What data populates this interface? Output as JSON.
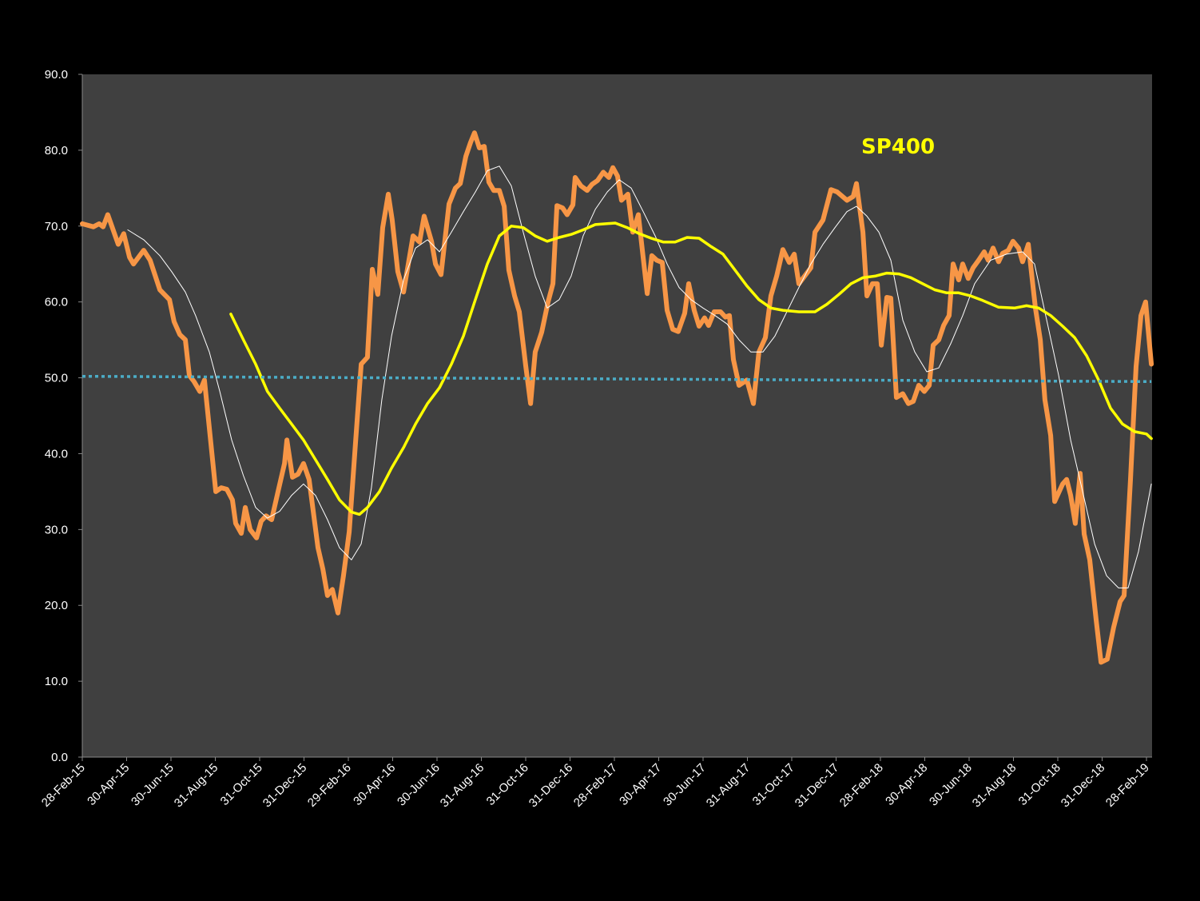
{
  "chart_data": {
    "type": "line",
    "title": "SP400",
    "title_color": "#FFFF00",
    "xlabel": "",
    "ylabel": "",
    "x_units": "months since 28-Feb-15",
    "xlim": [
      0,
      48.22
    ],
    "ylim": [
      0,
      90
    ],
    "y_ticks": [
      "0.0",
      "10.0",
      "20.0",
      "30.0",
      "40.0",
      "50.0",
      "60.0",
      "70.0",
      "80.0",
      "90.0"
    ],
    "x_tick_labels": [
      "28-Feb-15",
      "30-Apr-15",
      "30-Jun-15",
      "31-Aug-15",
      "31-Oct-15",
      "31-Dec-15",
      "29-Feb-16",
      "30-Apr-16",
      "30-Jun-16",
      "31-Aug-16",
      "31-Oct-16",
      "31-Dec-16",
      "28-Feb-17",
      "30-Apr-17",
      "30-Jun-17",
      "31-Aug-17",
      "31-Oct-17",
      "31-Dec-17",
      "28-Feb-18",
      "30-Apr-18",
      "30-Jun-18",
      "31-Aug-18",
      "31-Oct-18",
      "31-Dec-18",
      "28-Feb-19"
    ],
    "x_tick_step_months": 2,
    "grid": false,
    "plot_background": "#404040",
    "series": [
      {
        "color": "#F79646",
        "width": "thick",
        "style": "solid",
        "x": [
          0,
          0.5,
          0.76,
          0.94,
          1.15,
          1.62,
          1.87,
          2.13,
          2.31,
          2.77,
          3.06,
          3.5,
          3.93,
          4.14,
          4.4,
          4.65,
          4.83,
          5.04,
          5.3,
          5.51,
          6.02,
          6.27,
          6.52,
          6.77,
          6.92,
          7.17,
          7.35,
          7.57,
          7.86,
          8.07,
          8.29,
          8.54,
          8.83,
          9.12,
          9.23,
          9.48,
          9.73,
          9.98,
          10.23,
          10.63,
          10.85,
          11.06,
          11.28,
          11.53,
          11.78,
          12.04,
          12.32,
          12.58,
          12.86,
          13.08,
          13.33,
          13.55,
          13.8,
          13.98,
          14.23,
          14.49,
          14.92,
          15.21,
          15.42,
          15.75,
          15.93,
          16.18,
          16.54,
          16.83,
          17.05,
          17.3,
          17.51,
          17.69,
          17.91,
          18.13,
          18.34,
          18.56,
          18.81,
          19.03,
          19.24,
          19.5,
          19.71,
          20,
          20.22,
          20.43,
          20.72,
          21.01,
          21.23,
          21.41,
          21.66,
          21.87,
          22.13,
          22.23,
          22.49,
          22.77,
          22.99,
          23.24,
          23.5,
          23.75,
          23.93,
          24.14,
          24.32,
          24.61,
          24.83,
          25.08,
          25.48,
          25.69,
          25.91,
          26.16,
          26.38,
          26.63,
          26.88,
          27.17,
          27.35,
          27.6,
          27.82,
          28.07,
          28.25,
          28.5,
          28.79,
          29.01,
          29.19,
          29.37,
          29.62,
          29.98,
          30.27,
          30.52,
          30.81,
          31.06,
          31.32,
          31.6,
          31.89,
          32.11,
          32.32,
          32.86,
          33.05,
          33.41,
          33.77,
          34.05,
          34.49,
          34.77,
          34.92,
          35.21,
          35.39,
          35.64,
          35.86,
          36.04,
          36.29,
          36.47,
          36.72,
          37.01,
          37.26,
          37.48,
          37.73,
          37.98,
          38.2,
          38.38,
          38.63,
          38.85,
          39.1,
          39.28,
          39.53,
          39.71,
          39.96,
          40.18,
          40.43,
          40.68,
          40.86,
          41.08,
          41.33,
          41.51,
          41.77,
          41.98,
          42.23,
          42.41,
          42.67,
          42.99,
          43.21,
          43.42,
          43.68,
          43.86,
          44.22,
          44.4,
          44.58,
          44.79,
          45.01,
          45.19,
          45.44,
          45.73,
          45.95,
          46.23,
          46.52,
          46.81,
          46.99,
          47.28,
          47.53,
          47.75,
          47.96,
          48.22
        ],
        "y": [
          70.3,
          69.9,
          70.3,
          69.9,
          71.5,
          67.6,
          69,
          65.9,
          65,
          66.8,
          65.5,
          61.6,
          60.3,
          57.4,
          55.7,
          55,
          50.3,
          49.5,
          48.2,
          49.7,
          35,
          35.5,
          35.3,
          33.9,
          30.8,
          29.5,
          32.9,
          30,
          28.9,
          31.1,
          31.8,
          31.3,
          35,
          38.7,
          41.8,
          36.9,
          37.3,
          38.7,
          36.6,
          27.6,
          24.8,
          21.3,
          22.1,
          19,
          23.9,
          29.7,
          41.3,
          51.8,
          52.7,
          64.3,
          61,
          69.8,
          74.2,
          70.8,
          64,
          61.3,
          68.7,
          67.9,
          71.3,
          68,
          65,
          63.6,
          72.9,
          75,
          75.6,
          79.2,
          81,
          82.3,
          80.3,
          80.5,
          75.8,
          74.7,
          74.7,
          72.6,
          64.2,
          60.8,
          58.7,
          51.6,
          46.6,
          53.4,
          56,
          60,
          62.4,
          72.7,
          72.4,
          71.5,
          72.8,
          76.4,
          75.3,
          74.7,
          75.5,
          76,
          77.1,
          76.4,
          77.7,
          76.6,
          73.4,
          74.2,
          69.2,
          71.5,
          61.1,
          66.1,
          65.5,
          65.2,
          58.9,
          56.4,
          56.1,
          58.5,
          62.4,
          58.9,
          56.8,
          57.9,
          56.9,
          58.7,
          58.7,
          58,
          58.2,
          52.4,
          49,
          49.7,
          46.6,
          53.4,
          55.3,
          60.8,
          63.4,
          66.9,
          65.2,
          66.3,
          62.4,
          64.5,
          69.2,
          70.8,
          74.8,
          74.5,
          73.4,
          73.9,
          75.6,
          69.2,
          60.8,
          62.4,
          62.4,
          54.3,
          60.6,
          60.5,
          47.4,
          47.9,
          46.6,
          46.9,
          49,
          48.2,
          49,
          54.3,
          55,
          56.9,
          58.2,
          65,
          62.9,
          65,
          63.1,
          64.5,
          65.5,
          66.6,
          65.5,
          67.1,
          65.3,
          66.4,
          66.8,
          68,
          67.1,
          65.3,
          67.6,
          59.2,
          55,
          47.1,
          42.4,
          33.7,
          36,
          36.6,
          34.5,
          30.8,
          37.4,
          29.4,
          26,
          18.1,
          12.5,
          12.9,
          17.1,
          20.5,
          21.3,
          36.6,
          51.5,
          58.2,
          60,
          51.8
        ]
      },
      {
        "color": "#FFFFFF",
        "width": "thin",
        "style": "solid",
        "x": [
          2.05,
          2.77,
          3.5,
          4.03,
          4.65,
          5.11,
          5.73,
          6.2,
          6.74,
          7.27,
          7.82,
          8.35,
          8.9,
          9.44,
          9.98,
          10.52,
          11.06,
          11.6,
          12.14,
          12.58,
          13.04,
          13.51,
          13.95,
          14.49,
          15.03,
          15.57,
          16.11,
          16.65,
          17.19,
          17.73,
          18.27,
          18.81,
          19.35,
          19.89,
          20.43,
          20.97,
          21.51,
          22.05,
          22.59,
          23.14,
          23.68,
          24.22,
          24.76,
          25.3,
          25.84,
          26.38,
          26.92,
          27.46,
          28,
          28.54,
          29.08,
          29.62,
          30.16,
          30.7,
          31.24,
          31.78,
          32.32,
          32.86,
          33.41,
          33.95,
          34.49,
          34.92,
          35.39,
          35.93,
          36.47,
          37.01,
          37.55,
          38.09,
          38.63,
          39.17,
          39.71,
          40.25,
          40.97,
          41.69,
          42.41,
          42.95,
          43.5,
          44.04,
          44.58,
          45.12,
          45.66,
          46.2,
          46.74,
          47.17,
          47.64,
          48.22
        ],
        "y": [
          69.5,
          68.2,
          66.1,
          64,
          61.3,
          58.2,
          53.4,
          48.2,
          41.8,
          37.1,
          32.9,
          31.5,
          32.4,
          34.5,
          36,
          34.5,
          31.3,
          27.6,
          26,
          28.1,
          35.5,
          47.1,
          55.5,
          62.9,
          67.1,
          68.2,
          66.6,
          69.2,
          71.9,
          74.5,
          77.3,
          77.9,
          75.3,
          69.2,
          63.4,
          59.2,
          60.3,
          63.4,
          68.7,
          72.2,
          74.5,
          76.1,
          75,
          71.9,
          68.7,
          65,
          61.9,
          60.3,
          59.2,
          58.2,
          57.1,
          55,
          53.4,
          53.4,
          55.5,
          58.7,
          61.9,
          65,
          67.6,
          69.8,
          71.9,
          72.6,
          71.3,
          69.2,
          65.5,
          57.6,
          53.4,
          50.8,
          51.3,
          54.5,
          58.2,
          62.4,
          65.5,
          66.3,
          66.6,
          65,
          57.6,
          50.3,
          41.8,
          35,
          28.1,
          23.9,
          22.3,
          22.3,
          27.1,
          36
        ]
      },
      {
        "color": "#FFFF00",
        "width": "medium",
        "style": "solid",
        "x": [
          6.7,
          7.27,
          7.82,
          8.35,
          8.9,
          9.44,
          9.98,
          10.52,
          11.06,
          11.6,
          12.14,
          12.5,
          12.86,
          13.4,
          13.95,
          14.49,
          15.03,
          15.57,
          16.11,
          16.65,
          17.19,
          17.73,
          18.27,
          18.81,
          19.35,
          19.89,
          20.43,
          20.97,
          21.51,
          22.05,
          22.59,
          23.14,
          24.04,
          24.58,
          25.12,
          25.66,
          26.2,
          26.74,
          27.28,
          27.82,
          28.36,
          28.9,
          29.44,
          29.98,
          30.52,
          31.06,
          31.6,
          32.32,
          33.05,
          33.59,
          34.13,
          34.67,
          35.21,
          35.75,
          36.29,
          36.83,
          37.37,
          37.91,
          38.45,
          38.99,
          39.53,
          40.07,
          40.61,
          41.33,
          42.05,
          42.59,
          43.14,
          43.68,
          44.22,
          44.76,
          45.3,
          45.84,
          46.38,
          46.92,
          47.46,
          48,
          48.22
        ],
        "y": [
          58.4,
          55,
          51.8,
          48.2,
          46,
          43.9,
          41.8,
          39.2,
          36.6,
          33.9,
          32.3,
          32,
          32.9,
          35,
          38.1,
          40.8,
          43.9,
          46.6,
          48.7,
          51.8,
          55.5,
          60.3,
          65,
          68.7,
          70,
          69.8,
          68.7,
          68,
          68.5,
          68.9,
          69.5,
          70.2,
          70.4,
          69.8,
          69,
          68.4,
          67.9,
          67.9,
          68.5,
          68.4,
          67.3,
          66.3,
          64.2,
          62.1,
          60.3,
          59.2,
          58.9,
          58.7,
          58.7,
          59.7,
          61,
          62.4,
          63.2,
          63.4,
          63.8,
          63.7,
          63.2,
          62.4,
          61.6,
          61.2,
          61.2,
          60.8,
          60.2,
          59.3,
          59.2,
          59.5,
          59.2,
          58.2,
          56.8,
          55.3,
          52.9,
          49.7,
          46,
          43.9,
          42.9,
          42.6,
          42
        ]
      },
      {
        "color": "#4BACC6",
        "width": "medium",
        "style": "dotted",
        "x": [
          0,
          48.22
        ],
        "y": [
          50.2,
          49.5
        ]
      }
    ]
  }
}
